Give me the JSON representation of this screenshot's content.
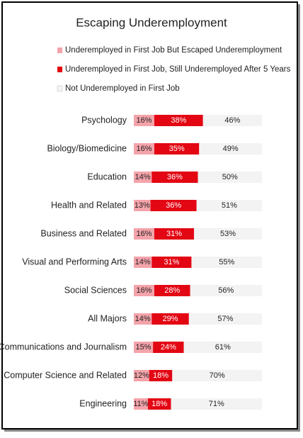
{
  "chart_data": {
    "type": "stacked-bar",
    "orientation": "horizontal",
    "title": "Escaping Underemployment",
    "categories": [
      "Psychology",
      "Biology/Biomedicine",
      "Education",
      "Health and Related",
      "Business and Related",
      "Visual and Performing Arts",
      "Social Sciences",
      "All Majors",
      "Communications and Journalism",
      "Computer Science and Related",
      "Engineering"
    ],
    "series": [
      {
        "name": "Underemployed in First Job But Escaped Underemployment",
        "color": "#f4a3aa",
        "values": [
          16,
          16,
          14,
          13,
          16,
          14,
          16,
          14,
          15,
          12,
          11
        ],
        "value_labels": [
          "16%",
          "16%",
          "14%",
          "13%",
          "16%",
          "14%",
          "16%",
          "14%",
          "15%",
          "12%",
          "11%"
        ]
      },
      {
        "name": "Underemployed in First Job, Still Underemployed After 5 Years",
        "color": "#e30613",
        "values": [
          38,
          35,
          36,
          36,
          31,
          31,
          28,
          29,
          24,
          18,
          18
        ],
        "value_labels": [
          "38%",
          "35%",
          "36%",
          "36%",
          "31%",
          "31%",
          "28%",
          "29%",
          "24%",
          "18%",
          "18%"
        ]
      },
      {
        "name": "Not Underemployed in First Job",
        "color": "#f3f3f3",
        "values": [
          46,
          49,
          50,
          51,
          53,
          55,
          56,
          57,
          61,
          70,
          71
        ],
        "value_labels": [
          "46%",
          "49%",
          "50%",
          "51%",
          "53%",
          "55%",
          "56%",
          "57%",
          "61%",
          "70%",
          "71%"
        ]
      }
    ]
  }
}
